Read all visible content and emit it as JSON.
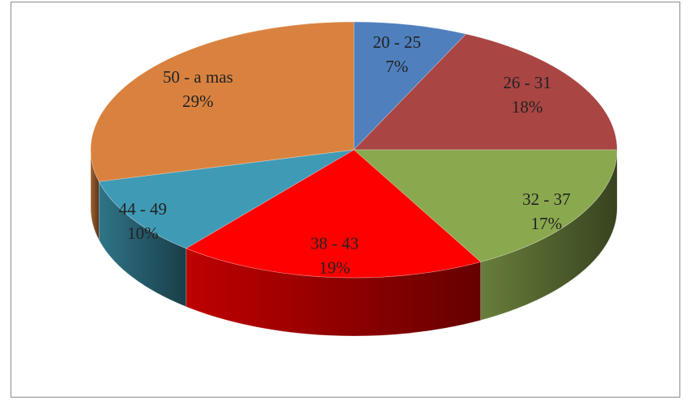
{
  "chart_data": {
    "type": "pie",
    "categories": [
      "20 - 25",
      "26 - 31",
      "32 - 37",
      "38 - 43",
      "44 - 49",
      "50 - a mas"
    ],
    "values": [
      7,
      18,
      17,
      19,
      10,
      29
    ],
    "value_labels": [
      "7%",
      "18%",
      "17%",
      "19%",
      "10%",
      "29%"
    ],
    "colors": [
      "#4f7fbd",
      "#a94543",
      "#8aa84e",
      "#ff0000",
      "#3f9ab5",
      "#d9823f"
    ]
  }
}
